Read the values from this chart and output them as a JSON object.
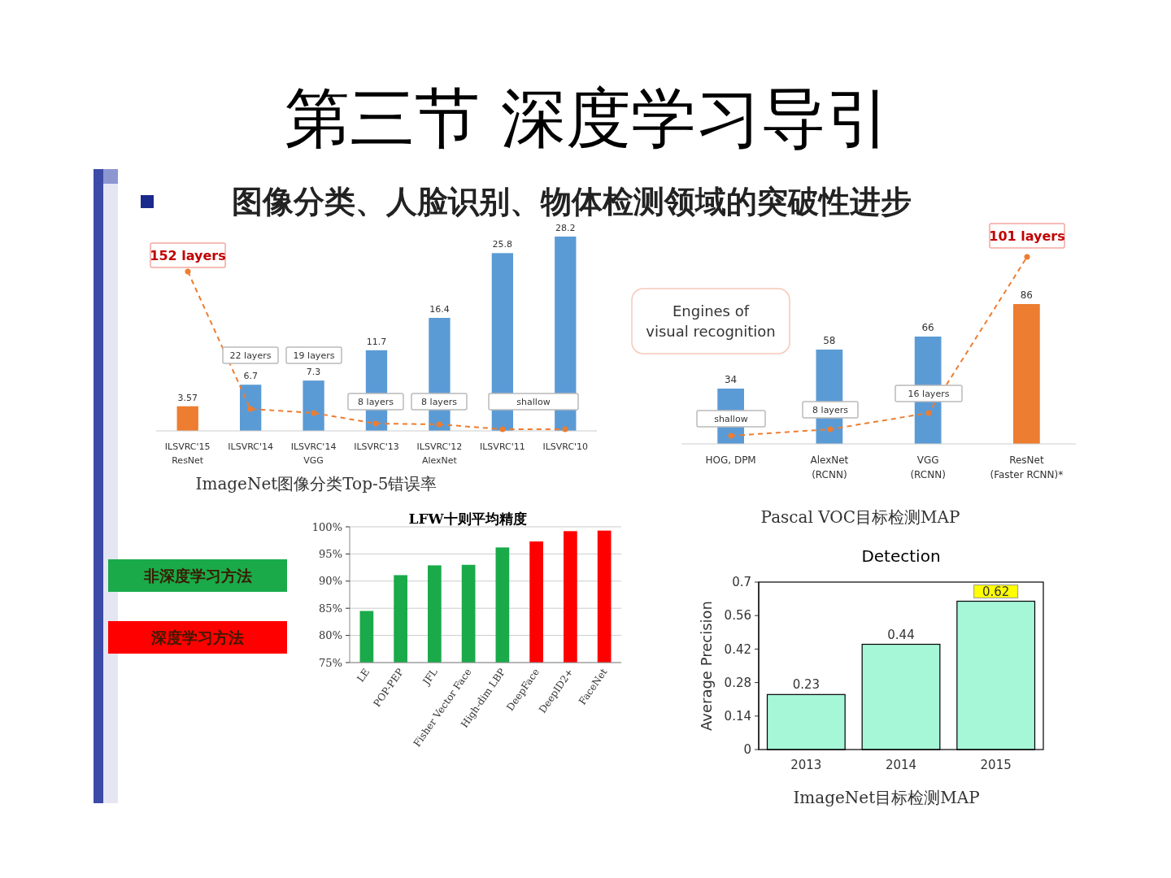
{
  "chart_data": [
    {
      "type": "bar",
      "title": "第三节  深度学习导引",
      "subtitle": "图像分类、人脸识别、物体检测领域的突破性进步",
      "categories": [
        "ILSVRC'15\nResNet",
        "ILSVRC'14",
        "ILSVRC'14\nVGG",
        "ILSVRC'13",
        "ILSVRC'12\nAlexNet",
        "ILSVRC'11",
        "ILSVRC'10"
      ],
      "values": [
        3.57,
        6.7,
        7.3,
        11.7,
        16.4,
        25.8,
        28.2
      ],
      "colors": [
        "#ed7d31",
        "#5b9bd5",
        "#5b9bd5",
        "#5b9bd5",
        "#5b9bd5",
        "#5b9bd5",
        "#5b9bd5"
      ],
      "data_labels": true,
      "annotations": [
        "152 layers",
        "22 layers",
        "19 layers",
        "8 layers",
        "8 layers",
        "shallow",
        "ImageNet图像分类Top-5错误率"
      ]
    },
    {
      "type": "bar",
      "categories": [
        "HOG, DPM",
        "AlexNet\n(RCNN)",
        "VGG\n(RCNN)",
        "ResNet\n(Faster RCNN)*"
      ],
      "values": [
        34,
        58,
        66,
        86
      ],
      "colors": [
        "#5b9bd5",
        "#5b9bd5",
        "#5b9bd5",
        "#ed7d31"
      ],
      "data_labels": true,
      "annotations": [
        "Engines of\nvisual recognition",
        "shallow",
        "8 layers",
        "16 layers",
        "101 layers",
        "Pascal VOC目标检测MAP"
      ]
    },
    {
      "type": "bar",
      "title": "LFW十则平均精度",
      "categories": [
        "LE",
        "POP-PEP",
        "JFL",
        "Fisher Vector Face",
        "High-dim LBP",
        "DeepFace",
        "DeepID2+",
        "FaceNet"
      ],
      "series": [
        {
          "name": "非深度学习方法",
          "color": "#1aaa4a",
          "values": [
            84.5,
            91.1,
            92.9,
            93.0,
            96.2,
            null,
            null,
            null
          ]
        },
        {
          "name": "深度学习方法",
          "color": "#ff0000",
          "values": [
            null,
            null,
            null,
            null,
            null,
            97.3,
            99.2,
            99.3
          ]
        }
      ],
      "ylim": [
        75,
        100
      ],
      "yticks": [
        {
          "value": 75,
          "label": "75%"
        },
        {
          "value": 80,
          "label": "80%"
        },
        {
          "value": 85,
          "label": "85%"
        },
        {
          "value": 90,
          "label": "90%"
        },
        {
          "value": 95,
          "label": "95%"
        },
        {
          "value": 100,
          "label": "100%"
        }
      ],
      "grid": "y",
      "legend": "left"
    },
    {
      "type": "bar",
      "title": "Detection",
      "ylabel": "Average Precision",
      "categories": [
        "2013",
        "2014",
        "2015"
      ],
      "values": [
        0.23,
        0.44,
        0.62
      ],
      "color": "#a6f7d8",
      "ylim": [
        0,
        0.7
      ],
      "yticks": [
        0,
        0.14,
        0.28,
        0.42,
        0.56,
        0.7
      ],
      "data_labels": true,
      "annotations": [
        "ImageNet目标检测MAP"
      ]
    }
  ]
}
